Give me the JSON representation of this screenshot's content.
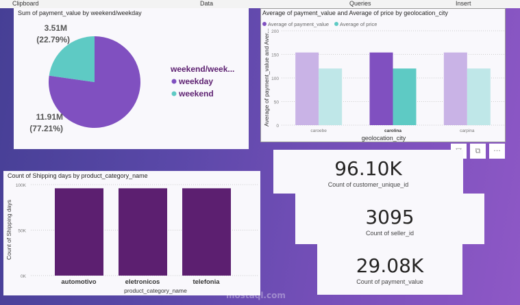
{
  "ribbon": {
    "items": [
      "Clipboard",
      "Data",
      "Queries",
      "Insert"
    ]
  },
  "colors": {
    "purple": "#8050c0",
    "teal": "#5ecac4",
    "dark_purple": "#5c1f70"
  },
  "chart_data": [
    {
      "type": "pie",
      "title": "Sum of payment_value by weekend/weekday",
      "legend_title": "weekend/week...",
      "slices": [
        {
          "name": "weekday",
          "value": 11.91,
          "label": "11.91M",
          "pct": "(77.21%)",
          "percent": 77.21
        },
        {
          "name": "weekend",
          "value": 3.51,
          "label": "3.51M",
          "pct": "(22.79%)",
          "percent": 22.79
        }
      ]
    },
    {
      "type": "bar",
      "title": "Average of payment_value and Average of price by geolocation_city",
      "xlabel": "geolocation_city",
      "ylabel": "Average of payment_value and Aver...",
      "ylim": [
        0,
        200
      ],
      "yticks": [
        "0",
        "50",
        "100",
        "150",
        "200"
      ],
      "categories": [
        "caroebe",
        "carolina",
        "carpina"
      ],
      "highlighted": "carolina",
      "series": [
        {
          "name": "Average of payment_value",
          "values": [
            154,
            154,
            154
          ]
        },
        {
          "name": "Average of price",
          "values": [
            120,
            120,
            120
          ]
        }
      ]
    },
    {
      "type": "bar",
      "title": "Count of Shipping days by product_category_name",
      "xlabel": "product_category_name",
      "ylabel": "Count of Shipping days",
      "ylim": [
        0,
        100000
      ],
      "yticks": [
        "0K",
        "50K",
        "100K"
      ],
      "categories": [
        "automotivo",
        "eletronicos",
        "telefonia"
      ],
      "values": [
        96000,
        96000,
        96000
      ]
    }
  ],
  "kpis": [
    {
      "value": "96.10K",
      "label": "Count of customer_unique_id"
    },
    {
      "value": "3095",
      "label": "Count of seller_id"
    },
    {
      "value": "29.08K",
      "label": "Count of payment_value"
    }
  ],
  "visual_header": {
    "icons": [
      "filter-icon",
      "focus-mode-icon",
      "more-options-icon"
    ]
  },
  "watermark": "mostaql.com"
}
